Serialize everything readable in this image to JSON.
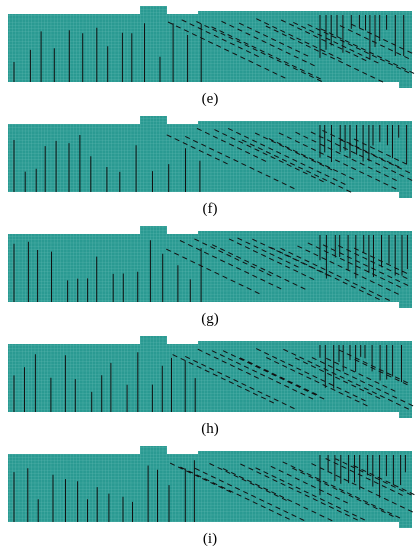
{
  "panels": [
    {
      "label": "(e)"
    },
    {
      "label": "(f)"
    },
    {
      "label": "(g)"
    },
    {
      "label": "(h)"
    },
    {
      "label": "(i)"
    }
  ]
}
